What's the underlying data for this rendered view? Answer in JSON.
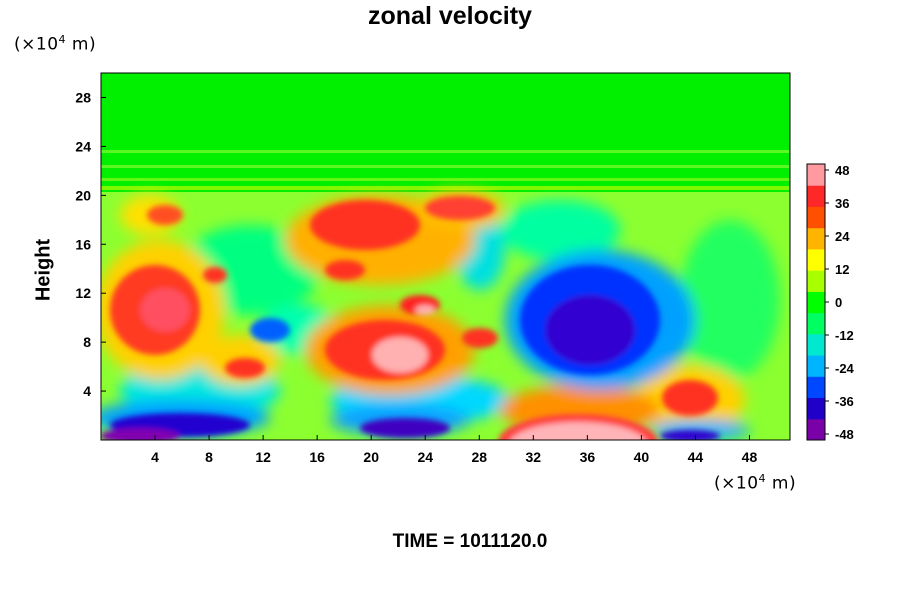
{
  "chart_data": {
    "type": "heatmap",
    "title": "zonal velocity",
    "ylabel": "Height",
    "xlabel": "",
    "x_unit": {
      "prefix": "(×10",
      "exp": "4",
      "suffix": " m)"
    },
    "y_unit": {
      "prefix": "(×10",
      "exp": "4",
      "suffix": " m)"
    },
    "xlim": [
      0,
      51
    ],
    "ylim": [
      0,
      30
    ],
    "x_ticks": [
      4,
      8,
      12,
      16,
      20,
      24,
      28,
      32,
      36,
      40,
      44,
      48
    ],
    "y_ticks": [
      4,
      8,
      12,
      16,
      20,
      24,
      28
    ],
    "colorbar": {
      "min": -48,
      "max": 48,
      "ticks": [
        48,
        36,
        24,
        12,
        0,
        -12,
        -24,
        -36,
        -48
      ],
      "colors": [
        "#7a00a8",
        "#2000c8",
        "#0048ff",
        "#00b4ff",
        "#00e8d0",
        "#00ff60",
        "#00ff00",
        "#a8ff00",
        "#ffff00",
        "#ffb400",
        "#ff5000",
        "#ff2828",
        "#ff9aa0"
      ]
    },
    "field_description": "zonal velocity contours over x 0–51 and height 0–30 (×10^4 m)",
    "time_label": "TIME = 1011120.0"
  }
}
